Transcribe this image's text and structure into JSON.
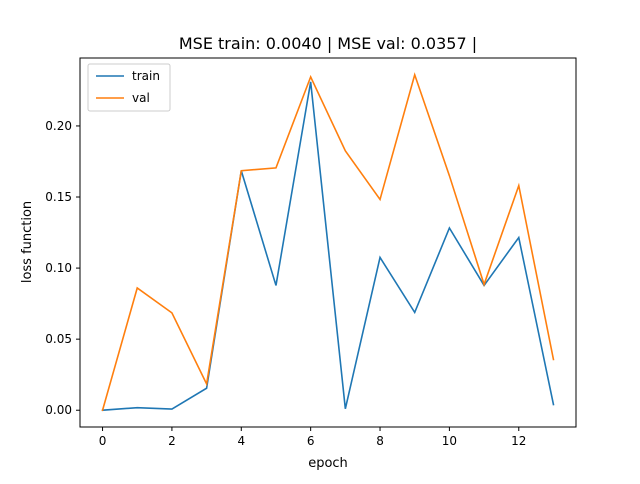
{
  "chart_data": {
    "type": "line",
    "title": "MSE train: 0.0040 | MSE val: 0.0357 |",
    "xlabel": "epoch",
    "ylabel": "loss function",
    "xlim": [
      -0.65,
      13.65
    ],
    "ylim": [
      -0.0118,
      0.2478
    ],
    "x_ticks": [
      0,
      2,
      4,
      6,
      8,
      10,
      12
    ],
    "y_ticks": [
      0.0,
      0.05,
      0.1,
      0.15,
      0.2
    ],
    "y_tick_labels": [
      "0.00",
      "0.05",
      "0.10",
      "0.15",
      "0.20"
    ],
    "grid": false,
    "legend_position": "upper-left",
    "x": [
      0,
      1,
      2,
      3,
      4,
      5,
      6,
      7,
      8,
      9,
      10,
      11,
      12,
      13
    ],
    "series": [
      {
        "name": "train",
        "color": "#1f77b4",
        "values": [
          0.0,
          0.0018,
          0.0008,
          0.0155,
          0.1685,
          0.0878,
          0.231,
          0.001,
          0.1075,
          0.0688,
          0.1282,
          0.0878,
          0.1215,
          0.004
        ]
      },
      {
        "name": "val",
        "color": "#ff7f0e",
        "values": [
          0.0,
          0.086,
          0.0685,
          0.0185,
          0.1685,
          0.1705,
          0.2345,
          0.1825,
          0.1483,
          0.236,
          0.165,
          0.0885,
          0.158,
          0.0357
        ]
      }
    ]
  }
}
